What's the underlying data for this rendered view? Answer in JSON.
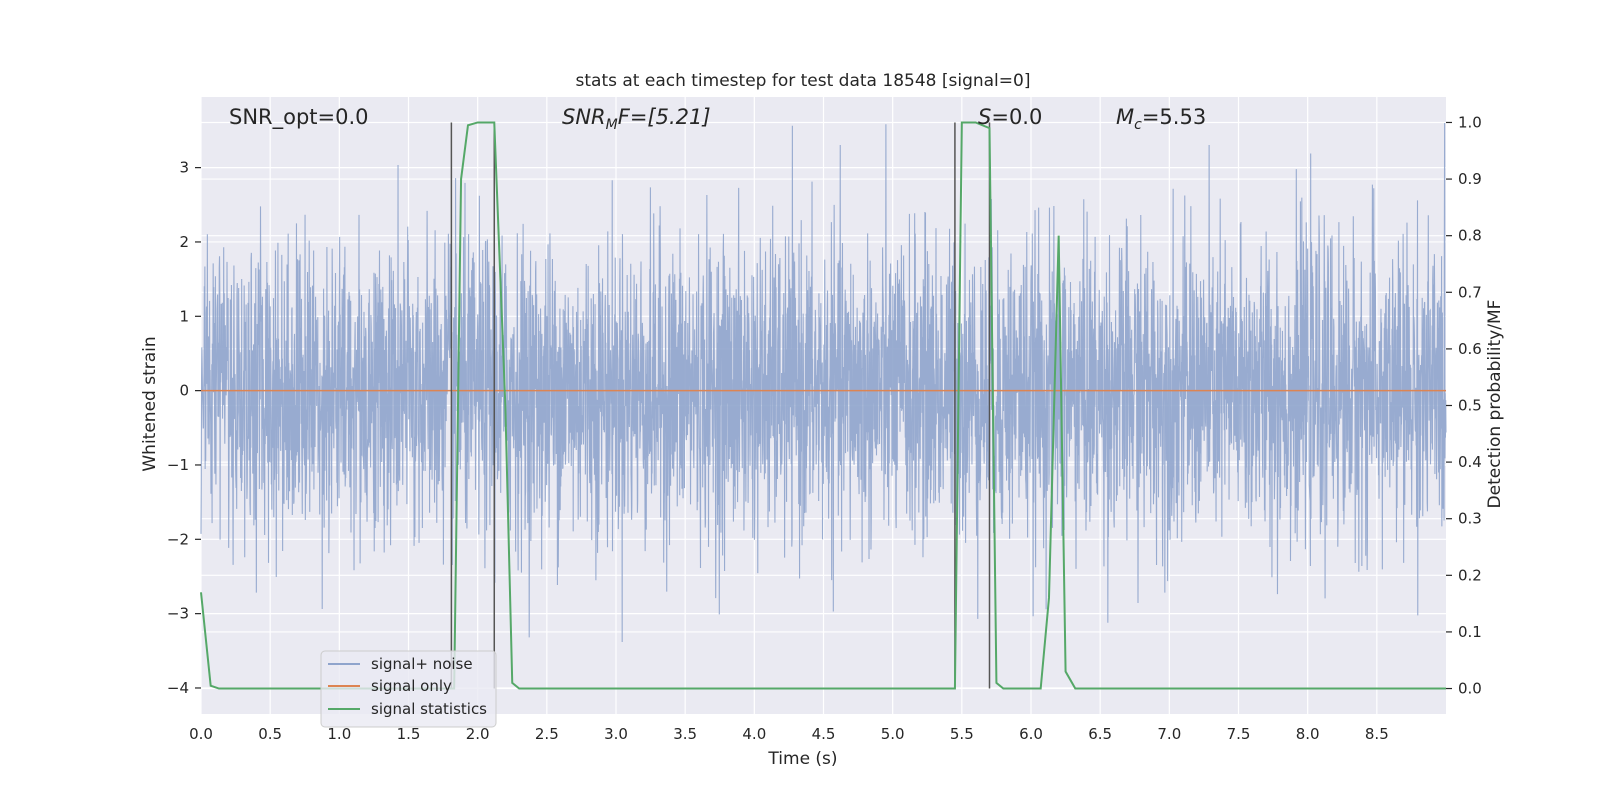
{
  "chart_data": {
    "type": "line",
    "title": "stats at each timestep for test data 18548 [signal=0]",
    "xlabel": "Time (s)",
    "ylabel_left": "Whitened strain",
    "ylabel_right": "Detection probability/MF",
    "xlim": [
      0.0,
      9.0
    ],
    "ylim_left": [
      -4.35,
      3.95
    ],
    "ylim_right": [
      -0.045,
      1.045
    ],
    "xticks": [
      "0.0",
      "0.5",
      "1.0",
      "1.5",
      "2.0",
      "2.5",
      "3.0",
      "3.5",
      "4.0",
      "4.5",
      "5.0",
      "5.5",
      "6.0",
      "6.5",
      "7.0",
      "7.5",
      "8.0",
      "8.5"
    ],
    "yticks_left": [
      "−4",
      "−3",
      "−2",
      "−1",
      "0",
      "1",
      "2",
      "3"
    ],
    "yticks_right": [
      "0.0",
      "0.1",
      "0.2",
      "0.3",
      "0.4",
      "0.5",
      "0.6",
      "0.7",
      "0.8",
      "0.9",
      "1.0"
    ],
    "grid": true,
    "legend_position": "lower-left",
    "annotations": {
      "snr_opt": "SNR_opt=0.0",
      "snr_mf_sym": "SNR",
      "snr_mf_sub": "M",
      "snr_mf_rest": "F=[5.21]",
      "s_sym": "S",
      "s_rest": "=0.0",
      "mc_sym": "M",
      "mc_sub": "c",
      "mc_rest": "=5.53"
    },
    "series": [
      {
        "name": "signal+ noise",
        "color": "#8fa4cc",
        "axis": "left",
        "description_values": "dense whitened noise, approximately unit variance, spanning about -4 to 3.6 over 0-9 s"
      },
      {
        "name": "signal only",
        "color": "#dd8452",
        "axis": "left",
        "x": [
          0.0,
          9.0
        ],
        "y": [
          0.0,
          0.0
        ]
      },
      {
        "name": "signal statistics",
        "color": "#55a868",
        "axis": "right",
        "x": [
          0.0,
          0.07,
          0.13,
          1.83,
          1.88,
          1.93,
          2.0,
          2.12,
          2.2,
          2.25,
          2.3,
          5.45,
          5.5,
          5.6,
          5.7,
          5.75,
          5.8,
          5.85,
          6.07,
          6.13,
          6.2,
          6.25,
          6.32,
          6.4,
          9.0
        ],
        "y": [
          0.17,
          0.005,
          0.0,
          0.0,
          0.9,
          0.995,
          1.0,
          1.0,
          0.5,
          0.01,
          0.0,
          0.0,
          1.0,
          1.0,
          0.99,
          0.01,
          0.0,
          0.0,
          0.0,
          0.16,
          0.8,
          0.03,
          0.0,
          0.0,
          0.0
        ]
      }
    ],
    "vlines": [
      {
        "x": 1.81,
        "y_top": 1.0,
        "y_bottom": 0.0,
        "color": "#555555"
      },
      {
        "x": 2.12,
        "y_top": 1.0,
        "y_bottom": 0.0,
        "color": "#555555"
      },
      {
        "x": 5.45,
        "y_top": 1.0,
        "y_bottom": 0.0,
        "color": "#555555"
      },
      {
        "x": 5.7,
        "y_top": 1.0,
        "y_bottom": 0.0,
        "color": "#555555"
      }
    ]
  },
  "colors": {
    "plot_background": "#eaeaf2",
    "grid": "#ffffff",
    "text": "#262626"
  }
}
